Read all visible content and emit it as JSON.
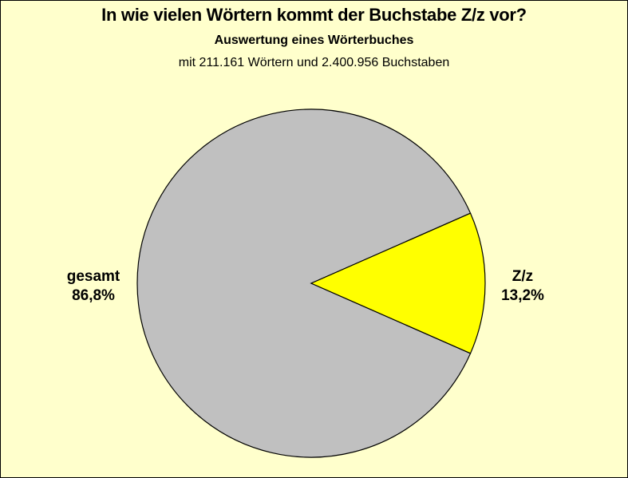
{
  "chart_data": {
    "type": "pie",
    "title": "In wie vielen Wörtern kommt der Buchstabe Z/z vor?",
    "subtitle": "Auswertung eines Wörterbuches",
    "subtitle2": "mit 211.161 Wörtern und 2.400.956 Buchstaben",
    "slices": [
      {
        "label": "gesamt",
        "value": 86.8,
        "value_label": "86,8%",
        "color": "#C0C0C0"
      },
      {
        "label": "Z/z",
        "value": 13.2,
        "value_label": "13,2%",
        "color": "#FFFF00"
      }
    ],
    "legend": "none",
    "background": "#FFFFCC"
  }
}
